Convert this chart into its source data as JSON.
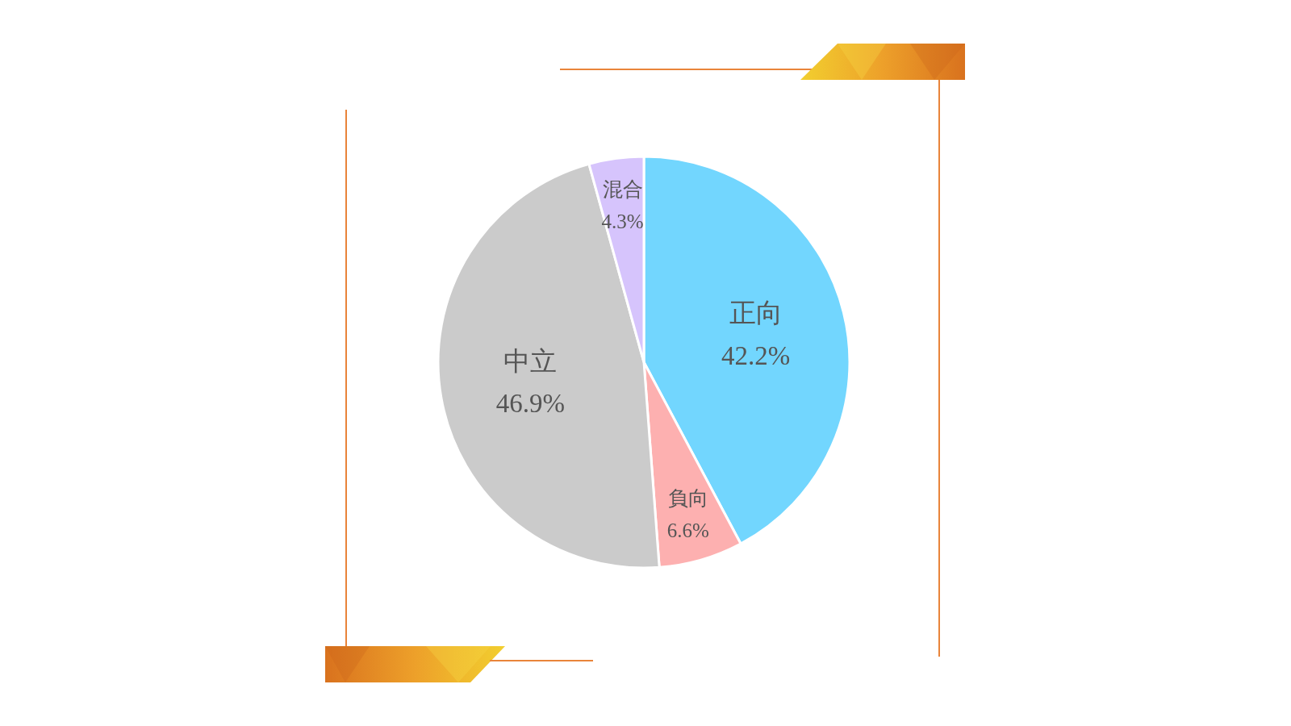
{
  "chart_data": {
    "type": "pie",
    "categories": [
      "正向",
      "負向",
      "中立",
      "混合"
    ],
    "values": [
      42.2,
      6.6,
      46.9,
      4.3
    ],
    "colors": [
      "#72d6fe",
      "#fdb0b0",
      "#cbcbcb",
      "#d6c4fc"
    ],
    "value_labels": [
      "42.2%",
      "6.6%",
      "46.9%",
      "4.3%"
    ]
  }
}
